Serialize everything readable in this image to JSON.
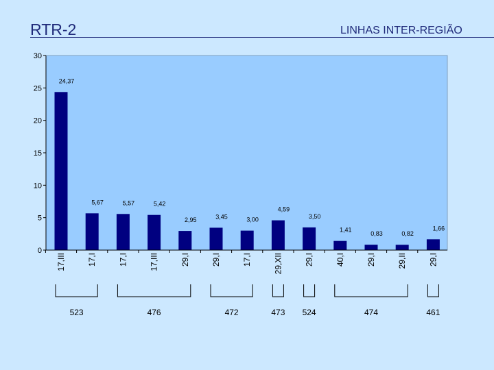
{
  "header": {
    "title": "RTR-2",
    "subtitle": "LINHAS INTER-REGIÃO"
  },
  "colors": {
    "background": "#cce8ff",
    "plot_area": "#99ccff",
    "bar": "#000080",
    "header_text": "#1f2a7a"
  },
  "chart_data": {
    "type": "bar",
    "categories": [
      "17,III",
      "17,I",
      "17,I",
      "17,III",
      "29,I",
      "29,I",
      "17,I",
      "29,XII",
      "29,I",
      "40,I",
      "29,I",
      "29,II",
      "29,I"
    ],
    "values": [
      24.37,
      5.67,
      5.57,
      5.42,
      2.95,
      3.45,
      3.0,
      4.59,
      3.5,
      1.41,
      0.83,
      0.82,
      1.66
    ],
    "value_labels": [
      "24,37",
      "5,67",
      "5,57",
      "5,42",
      "2,95",
      "3,45",
      "3,00",
      "4,59",
      "3,50",
      "1,41",
      "0,83",
      "0,82",
      "1,66"
    ],
    "ylim": [
      0,
      30
    ],
    "yticks": [
      "0",
      "5",
      "10",
      "15",
      "20",
      "25",
      "30"
    ],
    "grid": false,
    "groups": [
      {
        "label": "523",
        "from": 0,
        "to": 1
      },
      {
        "label": "476",
        "from": 2,
        "to": 4
      },
      {
        "label": "472",
        "from": 5,
        "to": 6
      },
      {
        "label": "473",
        "from": 7,
        "to": 7
      },
      {
        "label": "524",
        "from": 8,
        "to": 8
      },
      {
        "label": "474",
        "from": 9,
        "to": 11
      },
      {
        "label": "461",
        "from": 12,
        "to": 12
      }
    ]
  }
}
